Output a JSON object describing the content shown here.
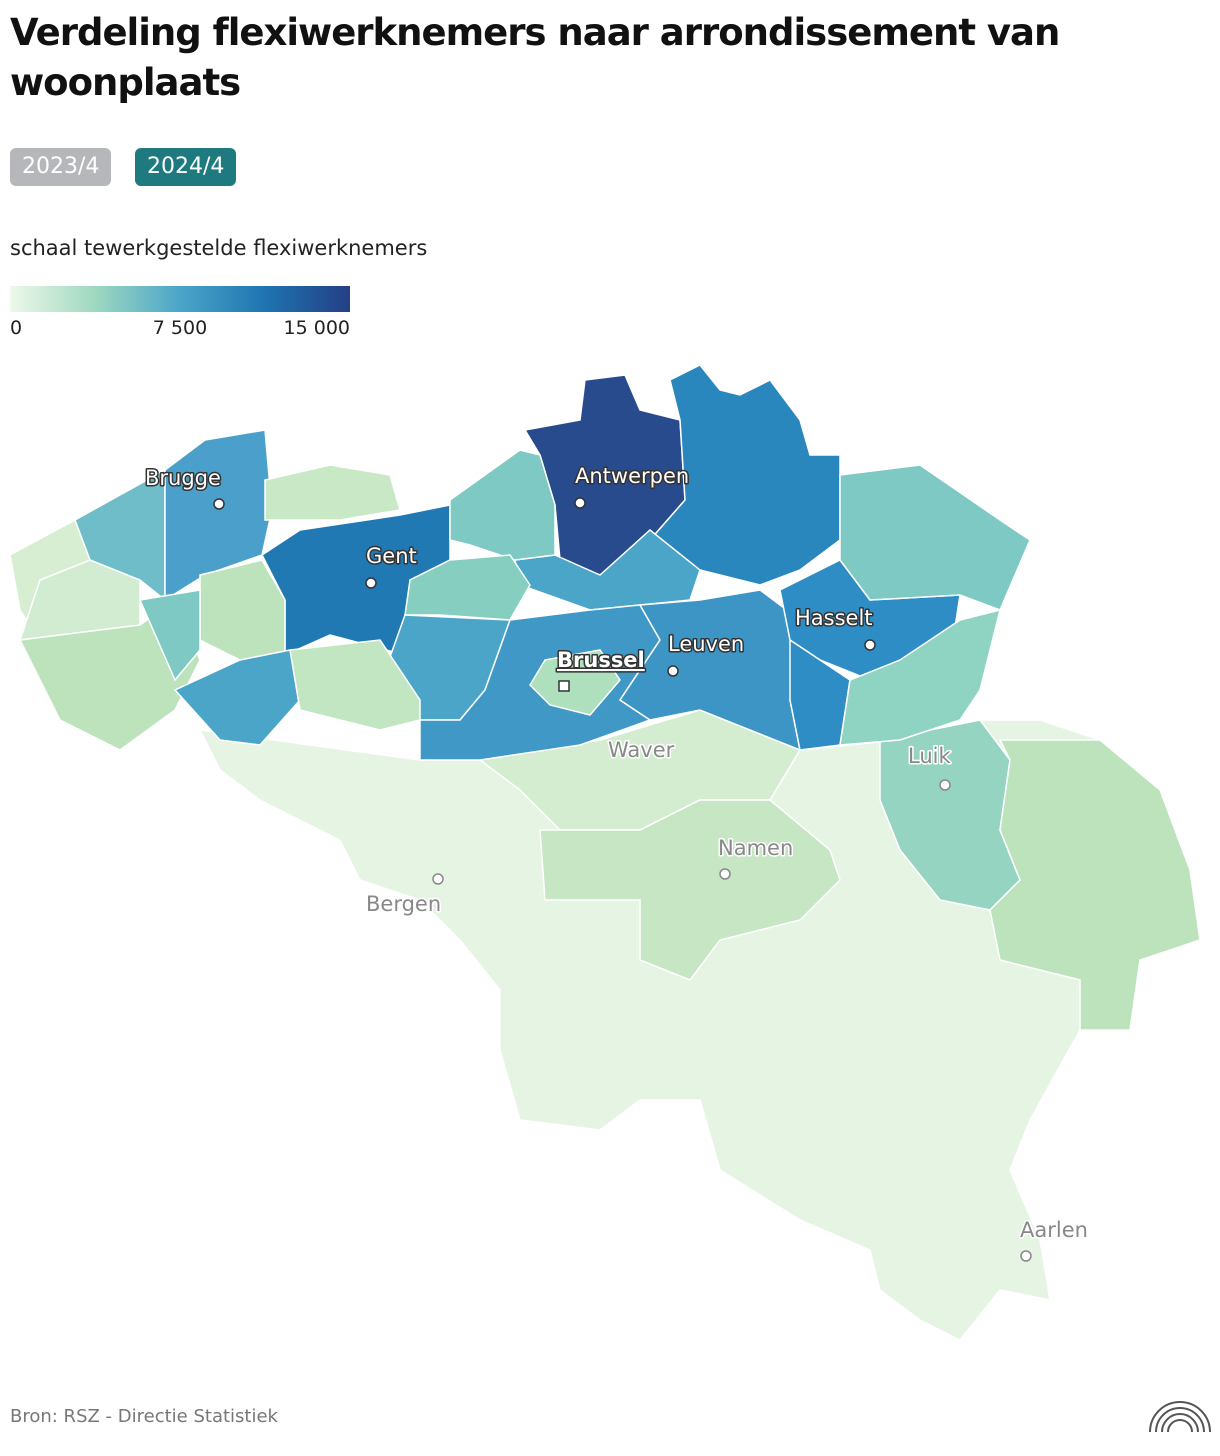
{
  "header": {
    "title": "Verdeling flexiwerknemers naar arrondissement van woonplaats"
  },
  "tabs": [
    "2023/4",
    "2024/4"
  ],
  "legend": {
    "title": "schaal tewerkgestelde flexiwerknemers",
    "ticks": [
      0,
      {
        "value": 7500,
        "label": "7 500"
      },
      {
        "value": 15000,
        "label": "15 000"
      }
    ]
  },
  "cities": [
    "Brugge",
    "Gent",
    "Antwerpen",
    "Hasselt",
    "Leuven",
    "Brussel",
    "Waver",
    "Luik",
    "Namen",
    "Bergen",
    "Aarlen"
  ],
  "source": "Bron: RSZ - Directie Statistiek"
}
